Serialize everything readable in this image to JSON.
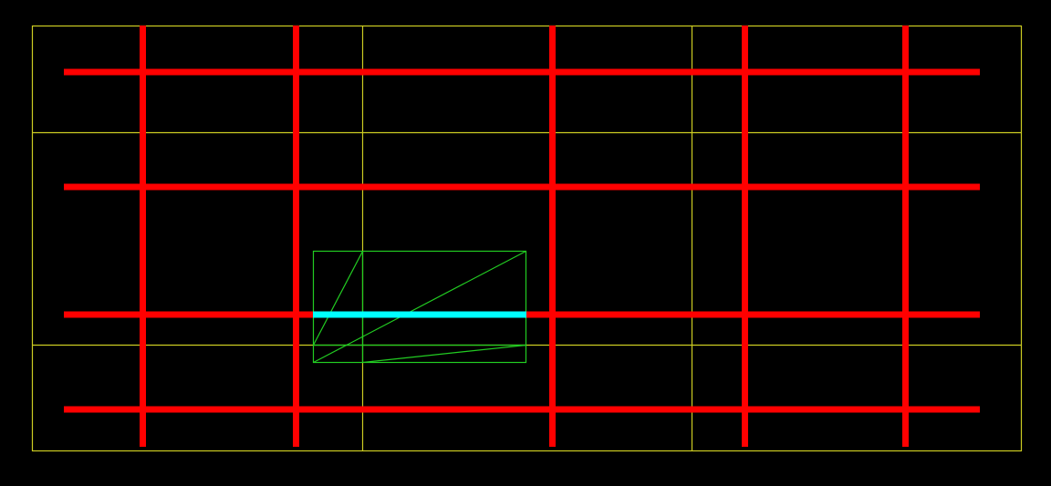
{
  "colors": {
    "background": "#000000",
    "grid": "#cccc22",
    "red_lines": "#ff0000",
    "highlight": "#00ffff",
    "mesh": "#22cc22"
  },
  "diagram": {
    "grid_lines": {
      "vertical_count": 4,
      "horizontal_count": 4
    },
    "red_lines": {
      "horizontal_count": 4,
      "vertical_count": 5
    },
    "highlight_segment_count": 1,
    "mesh_triangle_count": 6
  }
}
